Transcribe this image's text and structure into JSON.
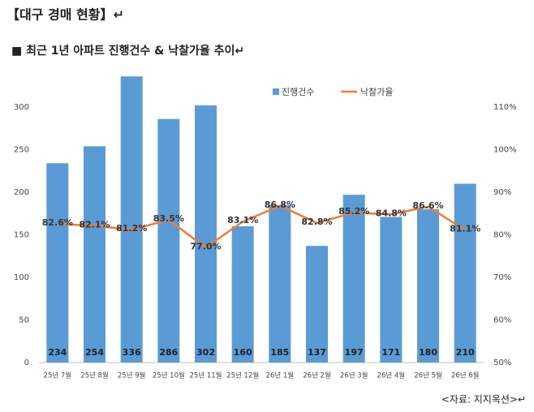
{
  "chart_data": {
    "type": "bar",
    "title": "【대구 경매 현황】↵",
    "subtitle": "■ 최근 1년 아파트 진행건수 & 낙찰가율 추이↵",
    "source": "<자료: 지지옥션>↵",
    "categories": [
      "25년 7월",
      "25년 8월",
      "25년 9월",
      "25년 10월",
      "25년 11월",
      "25년 12월",
      "26년 1월",
      "26년 2월",
      "26년 3월",
      "26년 4월",
      "26년 5월",
      "26년 6월"
    ],
    "series": [
      {
        "name": "진행건수",
        "type": "bar",
        "color": "#5b9bd5",
        "values": [
          234,
          254,
          336,
          286,
          302,
          160,
          185,
          137,
          197,
          171,
          180,
          210
        ]
      },
      {
        "name": "낙찰가율",
        "type": "line",
        "axis": "y2",
        "color": "#ed7d31",
        "values": [
          82.6,
          82.1,
          81.2,
          83.5,
          77.0,
          83.1,
          86.8,
          82.8,
          85.2,
          84.8,
          86.6,
          81.1
        ],
        "value_labels": [
          "82.6%",
          "82.1%",
          "81.2%",
          "83.5%",
          "77.0%",
          "83.1%",
          "86.8%",
          "82.8%",
          "85.2%",
          "84.8%",
          "86.6%",
          "81.1%"
        ]
      }
    ],
    "ylim": [
      0,
      350
    ],
    "yticks": [
      0,
      50,
      100,
      150,
      200,
      250,
      300
    ],
    "y2lim": [
      50,
      120
    ],
    "y2ticks": [
      {
        "value": 50,
        "label": "50%"
      },
      {
        "value": 60,
        "label": "60%"
      },
      {
        "value": 70,
        "label": "70%"
      },
      {
        "value": 80,
        "label": "80%"
      },
      {
        "value": 90,
        "label": "90%"
      },
      {
        "value": 100,
        "label": "100%"
      },
      {
        "value": 110,
        "label": "110%"
      }
    ]
  }
}
